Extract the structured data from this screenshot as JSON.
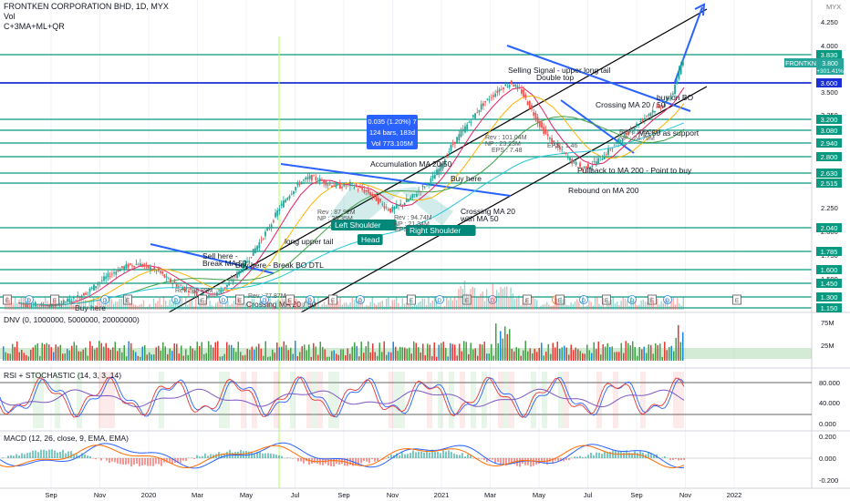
{
  "header": {
    "title": "FRONTKEN CORPORATION BHD, 1D, MYX",
    "line2": "Vol",
    "line3": "C+3MA+ML+QR"
  },
  "currency": "MYX",
  "colors": {
    "level_line": "#089981",
    "blue_line": "#1a2fd6",
    "channel": "#000000",
    "trend_blue": "#2962ff",
    "candle_up": "#26a69a",
    "candle_down": "#ef5350"
  },
  "chart_data": {
    "type": "line",
    "x_labels": [
      "Sep",
      "Nov",
      "2020",
      "Mar",
      "May",
      "Jul",
      "Sep",
      "Nov",
      "2021",
      "Mar",
      "May",
      "Jul",
      "Sep",
      "Nov",
      "2022"
    ],
    "price_axis_ticks": [
      "4.250",
      "4.000",
      "3.750",
      "3.500",
      "3.250",
      "2.250",
      "2.000",
      "1.750",
      "1.500"
    ],
    "levels": [
      "3.830",
      "3.600",
      "3.200",
      "3.080",
      "2.940",
      "2.800",
      "2.630",
      "2.515",
      "2.040",
      "1.785",
      "1.600",
      "1.450",
      "1.300",
      "1.150"
    ],
    "last_price": "3.800",
    "last_change": "+301.41%",
    "last_label": "FRONTKN",
    "close_series": [
      1.22,
      1.18,
      1.2,
      1.16,
      1.2,
      1.25,
      1.3,
      1.36,
      1.45,
      1.53,
      1.6,
      1.64,
      1.66,
      1.62,
      1.58,
      1.48,
      1.42,
      1.38,
      1.32,
      1.3,
      1.36,
      1.45,
      1.58,
      1.72,
      1.88,
      2.05,
      2.25,
      2.4,
      2.52,
      2.58,
      2.55,
      2.5,
      2.48,
      2.5,
      2.45,
      2.4,
      2.3,
      2.22,
      2.28,
      2.35,
      2.45,
      2.55,
      2.7,
      2.9,
      3.05,
      3.2,
      3.35,
      3.45,
      3.55,
      3.6,
      3.5,
      3.3,
      3.1,
      2.95,
      2.85,
      2.75,
      2.68,
      2.72,
      2.8,
      2.9,
      3.0,
      3.1,
      3.2,
      3.3,
      3.35,
      3.5,
      3.8
    ],
    "annotations": [
      "Selling Signal - upper long tail",
      "Double top",
      "buy on BO",
      "Crossing MA 20 / 50",
      "MA 50 as support",
      "Accumulation MA 20/50",
      "Buy here",
      "Left Shoulder",
      "Head",
      "Right Shoulder",
      "Crossing MA 20",
      "with MA 50",
      "long upper tail",
      "Sell here -",
      "Break MA 50",
      "Buy here - Break BO DTL",
      "Crossing MA 20 / 50",
      "Buy here",
      "Pullback to MA 200 - Point to buy",
      "Rebound on MA 200"
    ],
    "fundamentals": [
      "Rev : 88.89M",
      "Rev : 87.92M",
      "NP : 20.35M",
      "Rev : 94.74M",
      "NP : 21.34M",
      "Rev : 101.04M",
      "NP : 23.23M",
      "EPS : 7.48",
      "Rev : 108.52M",
      "NP : 24.79M",
      "EPS : 1.46",
      "Rev : 77.87M",
      "EPS"
    ],
    "measure_box": [
      "0.035 (1.20%) 7",
      "124 bars, 183d",
      "Vol 773.105M"
    ],
    "events": [
      "E",
      "D",
      "S"
    ]
  },
  "dnv_panel": {
    "title": "DNV (0, 1000000, 5000000, 20000000)",
    "ticks": [
      "75M",
      "25M"
    ]
  },
  "rsi_panel": {
    "title": "RSI + STOCHASTIC (14, 3, 3, 14)",
    "ticks": [
      "80.000",
      "40.000",
      "0.000"
    ]
  },
  "macd_panel": {
    "title": "MACD (12, 26, close, 9, EMA, EMA)",
    "ticks": [
      "0.200",
      "0.000",
      "-0.200"
    ]
  }
}
